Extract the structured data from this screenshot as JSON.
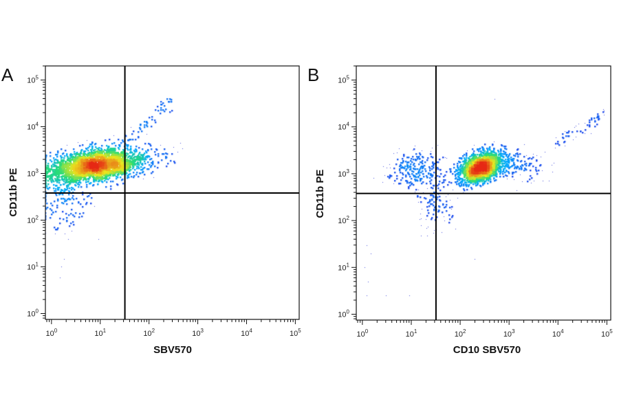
{
  "chart_data": [
    {
      "type": "scatter",
      "panel_label": "A",
      "xlabel": "SBV570",
      "ylabel": "CD11b PE",
      "x_scale": "log",
      "y_scale": "log",
      "xlim": [
        0.75,
        120000
      ],
      "ylim": [
        0.75,
        200000
      ],
      "x_ticks": [
        {
          "base": "10",
          "exp": "0",
          "value": 1
        },
        {
          "base": "10",
          "exp": "1",
          "value": 10
        },
        {
          "base": "10",
          "exp": "2",
          "value": 100
        },
        {
          "base": "10",
          "exp": "3",
          "value": 1000
        },
        {
          "base": "10",
          "exp": "4",
          "value": 10000
        },
        {
          "base": "10",
          "exp": "5",
          "value": 100000
        }
      ],
      "y_ticks": [
        {
          "base": "10",
          "exp": "0",
          "value": 1
        },
        {
          "base": "10",
          "exp": "1",
          "value": 10
        },
        {
          "base": "10",
          "exp": "2",
          "value": 100
        },
        {
          "base": "10",
          "exp": "3",
          "value": 1000
        },
        {
          "base": "10",
          "exp": "4",
          "value": 10000
        },
        {
          "base": "10",
          "exp": "5",
          "value": 100000
        }
      ],
      "gates": {
        "vertical_x": 32,
        "horizontal_y": 380
      },
      "populations": [
        {
          "center_x": 8,
          "center_y": 1500,
          "spread_x_decades": 0.55,
          "spread_y_decades": 0.2,
          "count": 2200,
          "kind": "main"
        },
        {
          "center_x": 2,
          "center_y": 300,
          "spread_x_decades": 0.25,
          "spread_y_decades": 0.35,
          "count": 160,
          "kind": "sparse"
        }
      ],
      "trail": [
        {
          "x": 32,
          "y": 5000
        },
        {
          "x": 60,
          "y": 8000
        },
        {
          "x": 100,
          "y": 14000
        },
        {
          "x": 180,
          "y": 25000
        },
        {
          "x": 250,
          "y": 32000
        }
      ],
      "outliers": [
        {
          "x": 1.6,
          "y": 10
        },
        {
          "x": 1.5,
          "y": 6
        },
        {
          "x": 1.8,
          "y": 15
        },
        {
          "x": 2.2,
          "y": 40
        },
        {
          "x": 9,
          "y": 40
        },
        {
          "x": 120,
          "y": 1700
        },
        {
          "x": 95,
          "y": 3200
        }
      ]
    },
    {
      "type": "scatter",
      "panel_label": "B",
      "xlabel": "CD10 SBV570",
      "ylabel": "CD11b PE",
      "x_scale": "log",
      "y_scale": "log",
      "xlim": [
        0.75,
        120000
      ],
      "ylim": [
        0.75,
        200000
      ],
      "x_ticks": [
        {
          "base": "10",
          "exp": "0",
          "value": 1
        },
        {
          "base": "10",
          "exp": "1",
          "value": 10
        },
        {
          "base": "10",
          "exp": "2",
          "value": 100
        },
        {
          "base": "10",
          "exp": "3",
          "value": 1000
        },
        {
          "base": "10",
          "exp": "4",
          "value": 10000
        },
        {
          "base": "10",
          "exp": "5",
          "value": 100000
        }
      ],
      "y_ticks": [
        {
          "base": "10",
          "exp": "0",
          "value": 1
        },
        {
          "base": "10",
          "exp": "1",
          "value": 10
        },
        {
          "base": "10",
          "exp": "2",
          "value": 100
        },
        {
          "base": "10",
          "exp": "3",
          "value": 1000
        },
        {
          "base": "10",
          "exp": "4",
          "value": 10000
        },
        {
          "base": "10",
          "exp": "5",
          "value": 100000
        }
      ],
      "gates": {
        "vertical_x": 32,
        "horizontal_y": 380
      },
      "populations": [
        {
          "center_x": 260,
          "center_y": 1400,
          "spread_x_decades": 0.22,
          "spread_y_decades": 0.17,
          "count": 1700,
          "kind": "main"
        },
        {
          "center_x": 12,
          "center_y": 1200,
          "spread_x_decades": 0.3,
          "spread_y_decades": 0.2,
          "count": 230,
          "kind": "sparse"
        },
        {
          "center_x": 30,
          "center_y": 250,
          "spread_x_decades": 0.2,
          "spread_y_decades": 0.3,
          "count": 110,
          "kind": "sparse"
        },
        {
          "center_x": 1500,
          "center_y": 1500,
          "spread_x_decades": 0.3,
          "spread_y_decades": 0.18,
          "count": 150,
          "kind": "sparse"
        }
      ],
      "trail": [
        {
          "x": 8000,
          "y": 4000
        },
        {
          "x": 15000,
          "y": 6000
        },
        {
          "x": 30000,
          "y": 9000
        },
        {
          "x": 60000,
          "y": 14000
        },
        {
          "x": 80000,
          "y": 20000
        }
      ],
      "outliers": [
        {
          "x": 1.2,
          "y": 30
        },
        {
          "x": 1.5,
          "y": 20
        },
        {
          "x": 1.1,
          "y": 10
        },
        {
          "x": 1.3,
          "y": 5
        },
        {
          "x": 1.2,
          "y": 2.5
        },
        {
          "x": 3,
          "y": 2.5
        },
        {
          "x": 9,
          "y": 2.5
        },
        {
          "x": 200,
          "y": 15
        },
        {
          "x": 500,
          "y": 40000
        }
      ]
    }
  ]
}
